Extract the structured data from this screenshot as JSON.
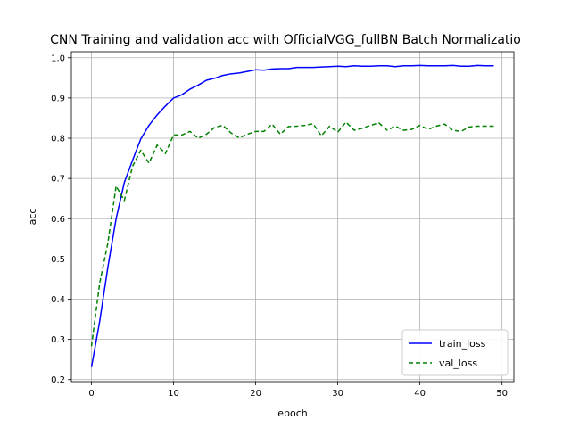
{
  "chart_data": {
    "type": "line",
    "title": "CNN Training and validation acc with OfficialVGG_fullBN Batch Normalizatio",
    "xlabel": "epoch",
    "ylabel": "acc",
    "xlim": [
      -2.45,
      51.45
    ],
    "ylim": [
      0.195,
      1.015
    ],
    "xticks": [
      0,
      10,
      20,
      30,
      40,
      50
    ],
    "yticks": [
      0.2,
      0.3,
      0.4,
      0.5,
      0.6,
      0.7,
      0.8,
      0.9,
      1.0
    ],
    "grid": true,
    "legend_position": "lower-right",
    "x": [
      0,
      1,
      2,
      3,
      4,
      5,
      6,
      7,
      8,
      9,
      10,
      11,
      12,
      13,
      14,
      15,
      16,
      17,
      18,
      19,
      20,
      21,
      22,
      23,
      24,
      25,
      26,
      27,
      28,
      29,
      30,
      31,
      32,
      33,
      34,
      35,
      36,
      37,
      38,
      39,
      40,
      41,
      42,
      43,
      44,
      45,
      46,
      47,
      48,
      49
    ],
    "series": [
      {
        "name": "train_loss",
        "color": "#0000ff",
        "style": "solid",
        "values": [
          0.231,
          0.345,
          0.48,
          0.6,
          0.69,
          0.745,
          0.798,
          0.832,
          0.858,
          0.88,
          0.9,
          0.908,
          0.922,
          0.932,
          0.944,
          0.949,
          0.956,
          0.96,
          0.962,
          0.966,
          0.97,
          0.969,
          0.972,
          0.973,
          0.973,
          0.976,
          0.976,
          0.976,
          0.977,
          0.978,
          0.979,
          0.978,
          0.98,
          0.979,
          0.979,
          0.98,
          0.98,
          0.978,
          0.98,
          0.98,
          0.981,
          0.98,
          0.98,
          0.98,
          0.981,
          0.979,
          0.979,
          0.981,
          0.98,
          0.98
        ]
      },
      {
        "name": "val_loss",
        "color": "#008000",
        "style": "dashed",
        "values": [
          0.283,
          0.44,
          0.54,
          0.681,
          0.645,
          0.73,
          0.77,
          0.738,
          0.783,
          0.762,
          0.808,
          0.808,
          0.817,
          0.8,
          0.81,
          0.827,
          0.832,
          0.813,
          0.801,
          0.81,
          0.817,
          0.817,
          0.835,
          0.81,
          0.829,
          0.83,
          0.832,
          0.836,
          0.806,
          0.83,
          0.815,
          0.84,
          0.82,
          0.825,
          0.832,
          0.838,
          0.82,
          0.83,
          0.82,
          0.822,
          0.832,
          0.822,
          0.83,
          0.835,
          0.82,
          0.817,
          0.828,
          0.83,
          0.83,
          0.83
        ]
      }
    ]
  }
}
